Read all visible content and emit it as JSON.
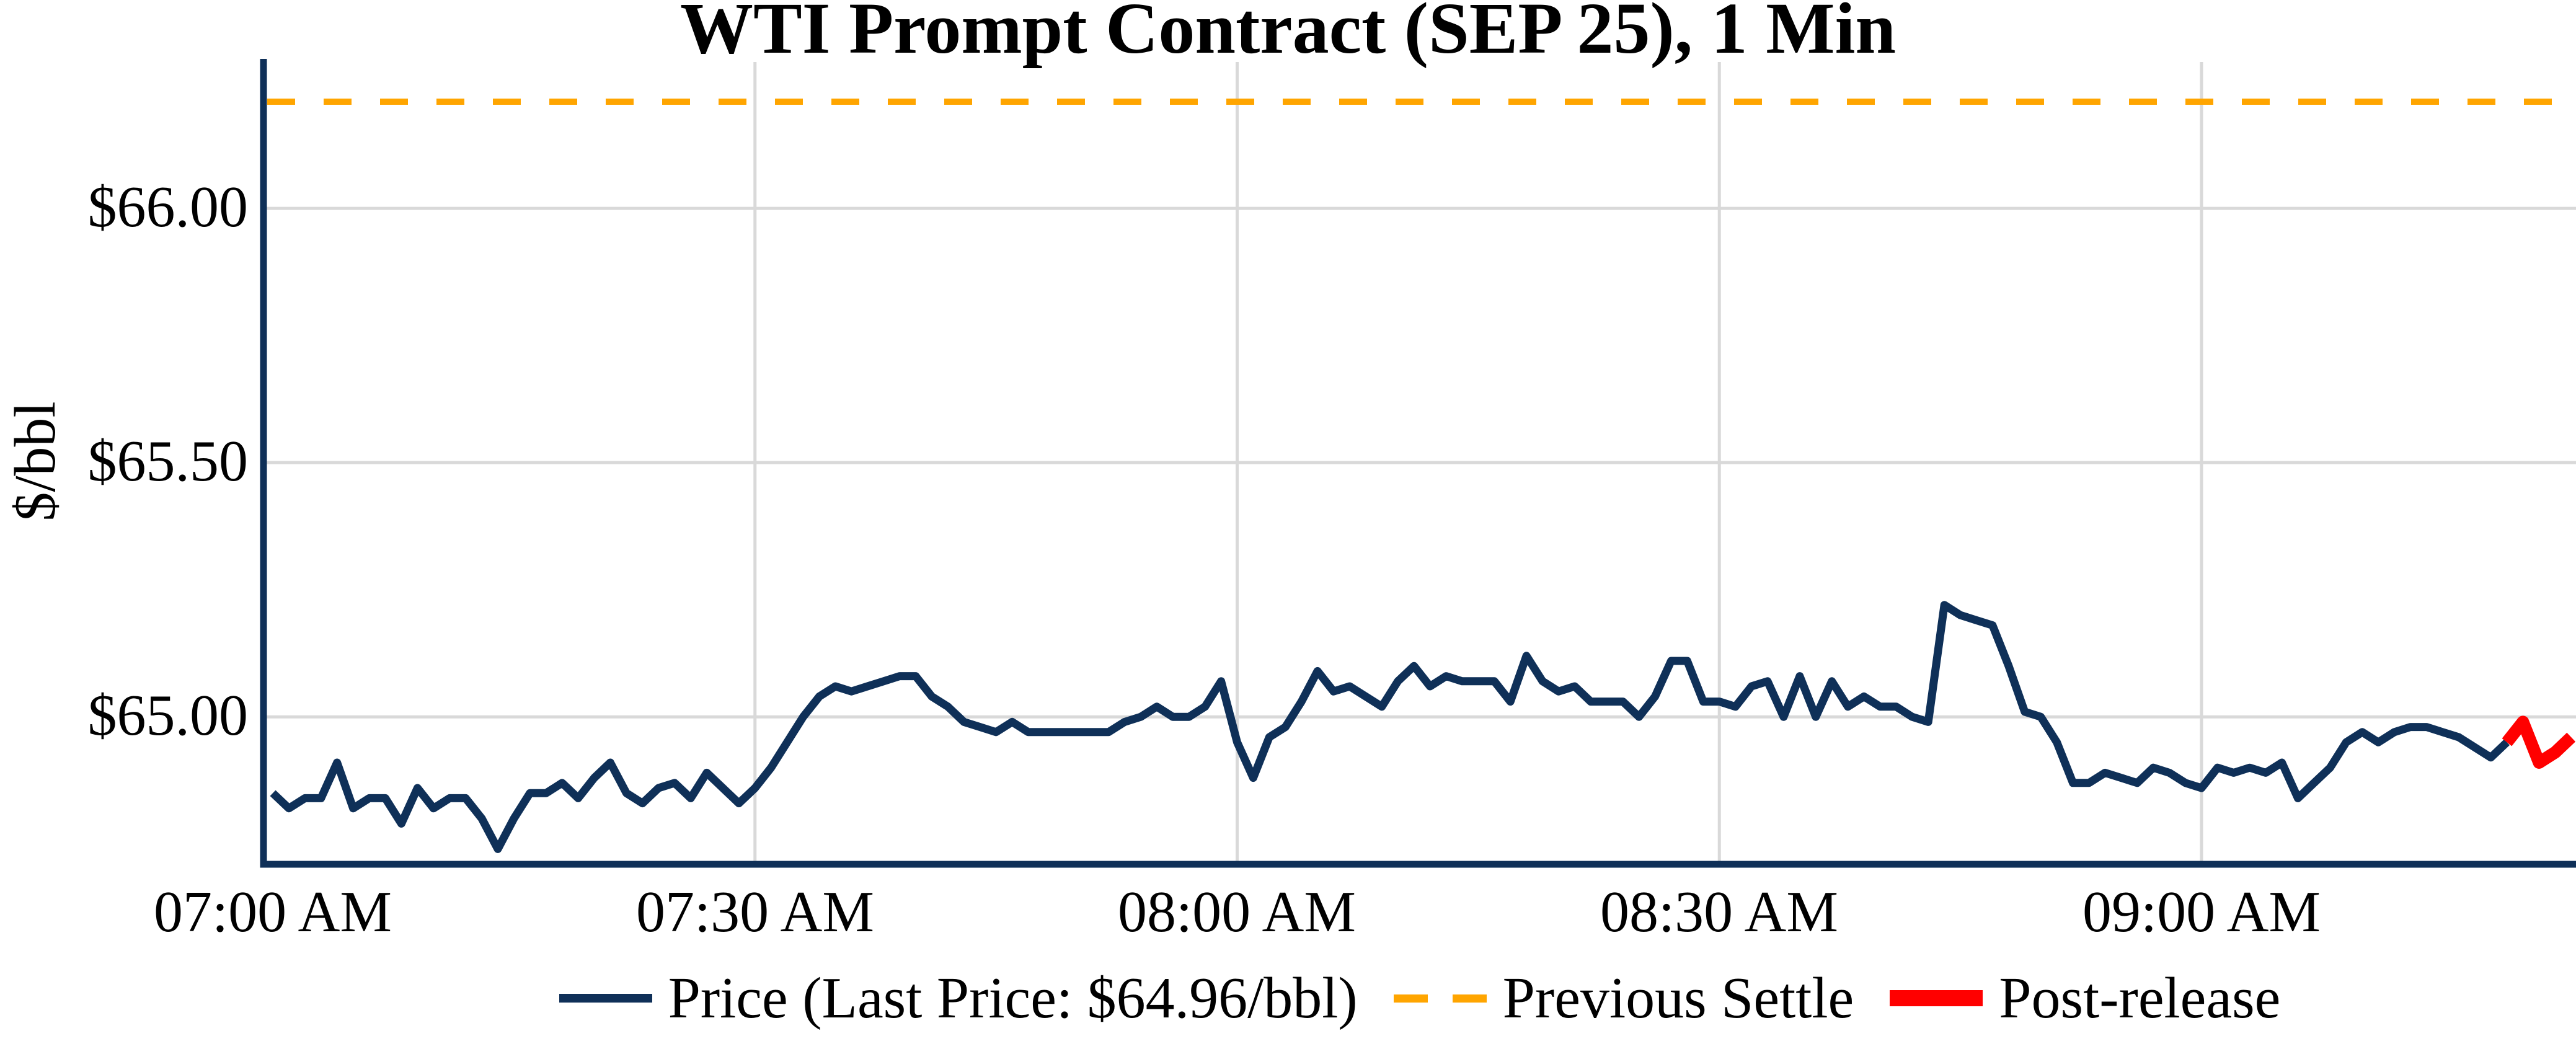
{
  "chart_data": {
    "type": "line",
    "title": "WTI Prompt Contract (SEP 25), 1 Min",
    "ylabel": "$/bbl",
    "last_price_label": "$64.96/bbl",
    "grid": true,
    "colors": {
      "price": "#0f3058",
      "previous_settle": "#ffa500",
      "post_release": "#ff0000",
      "gridline": "#d9d9d9"
    },
    "x_axis": {
      "ticks": [
        {
          "label": "07:00 AM",
          "time": "07:00"
        },
        {
          "label": "07:30 AM",
          "time": "07:30"
        },
        {
          "label": "08:00 AM",
          "time": "08:00"
        },
        {
          "label": "08:30 AM",
          "time": "08:30"
        },
        {
          "label": "09:00 AM",
          "time": "09:00"
        }
      ],
      "xlim_minutes": [
        -0.58,
        143.3
      ]
    },
    "y_axis": {
      "ticks": [
        {
          "label": "$66.00",
          "value": 66.0
        },
        {
          "label": "$65.50",
          "value": 65.5
        },
        {
          "label": "$65.00",
          "value": 65.0
        }
      ],
      "ylim": [
        64.71,
        66.288
      ]
    },
    "previous_settle": {
      "name": "Previous Settle",
      "value": 66.21
    },
    "series": [
      {
        "name": "Price",
        "style": "solid",
        "color": "#0f3058",
        "points": [
          [
            "07:00",
            64.85
          ],
          [
            "07:01",
            64.82
          ],
          [
            "07:02",
            64.84
          ],
          [
            "07:03",
            64.84
          ],
          [
            "07:04",
            64.91
          ],
          [
            "07:05",
            64.82
          ],
          [
            "07:06",
            64.84
          ],
          [
            "07:07",
            64.84
          ],
          [
            "07:08",
            64.79
          ],
          [
            "07:09",
            64.86
          ],
          [
            "07:10",
            64.82
          ],
          [
            "07:11",
            64.84
          ],
          [
            "07:12",
            64.84
          ],
          [
            "07:13",
            64.8
          ],
          [
            "07:14",
            64.74
          ],
          [
            "07:15",
            64.8
          ],
          [
            "07:16",
            64.85
          ],
          [
            "07:17",
            64.85
          ],
          [
            "07:18",
            64.87
          ],
          [
            "07:19",
            64.84
          ],
          [
            "07:20",
            64.88
          ],
          [
            "07:21",
            64.91
          ],
          [
            "07:22",
            64.85
          ],
          [
            "07:23",
            64.83
          ],
          [
            "07:24",
            64.86
          ],
          [
            "07:25",
            64.87
          ],
          [
            "07:26",
            64.84
          ],
          [
            "07:27",
            64.89
          ],
          [
            "07:28",
            64.86
          ],
          [
            "07:29",
            64.83
          ],
          [
            "07:30",
            64.86
          ],
          [
            "07:31",
            64.9
          ],
          [
            "07:32",
            64.95
          ],
          [
            "07:33",
            65.0
          ],
          [
            "07:34",
            65.04
          ],
          [
            "07:35",
            65.06
          ],
          [
            "07:36",
            65.05
          ],
          [
            "07:37",
            65.06
          ],
          [
            "07:38",
            65.07
          ],
          [
            "07:39",
            65.08
          ],
          [
            "07:40",
            65.08
          ],
          [
            "07:41",
            65.04
          ],
          [
            "07:42",
            65.02
          ],
          [
            "07:43",
            64.99
          ],
          [
            "07:44",
            64.98
          ],
          [
            "07:45",
            64.97
          ],
          [
            "07:46",
            64.99
          ],
          [
            "07:47",
            64.97
          ],
          [
            "07:48",
            64.97
          ],
          [
            "07:49",
            64.97
          ],
          [
            "07:50",
            64.97
          ],
          [
            "07:51",
            64.97
          ],
          [
            "07:52",
            64.97
          ],
          [
            "07:53",
            64.99
          ],
          [
            "07:54",
            65.0
          ],
          [
            "07:55",
            65.02
          ],
          [
            "07:56",
            65.0
          ],
          [
            "07:57",
            65.0
          ],
          [
            "07:58",
            65.02
          ],
          [
            "07:59",
            65.07
          ],
          [
            "08:00",
            64.95
          ],
          [
            "08:01",
            64.88
          ],
          [
            "08:02",
            64.96
          ],
          [
            "08:03",
            64.98
          ],
          [
            "08:04",
            65.03
          ],
          [
            "08:05",
            65.09
          ],
          [
            "08:06",
            65.05
          ],
          [
            "08:07",
            65.06
          ],
          [
            "08:08",
            65.04
          ],
          [
            "08:09",
            65.02
          ],
          [
            "08:10",
            65.07
          ],
          [
            "08:11",
            65.1
          ],
          [
            "08:12",
            65.06
          ],
          [
            "08:13",
            65.08
          ],
          [
            "08:14",
            65.07
          ],
          [
            "08:15",
            65.07
          ],
          [
            "08:16",
            65.07
          ],
          [
            "08:17",
            65.03
          ],
          [
            "08:18",
            65.12
          ],
          [
            "08:19",
            65.07
          ],
          [
            "08:20",
            65.05
          ],
          [
            "08:21",
            65.06
          ],
          [
            "08:22",
            65.03
          ],
          [
            "08:23",
            65.03
          ],
          [
            "08:24",
            65.03
          ],
          [
            "08:25",
            65.0
          ],
          [
            "08:26",
            65.04
          ],
          [
            "08:27",
            65.11
          ],
          [
            "08:28",
            65.11
          ],
          [
            "08:29",
            65.03
          ],
          [
            "08:30",
            65.03
          ],
          [
            "08:31",
            65.02
          ],
          [
            "08:32",
            65.06
          ],
          [
            "08:33",
            65.07
          ],
          [
            "08:34",
            65.0
          ],
          [
            "08:35",
            65.08
          ],
          [
            "08:36",
            65.0
          ],
          [
            "08:37",
            65.07
          ],
          [
            "08:38",
            65.02
          ],
          [
            "08:39",
            65.04
          ],
          [
            "08:40",
            65.02
          ],
          [
            "08:41",
            65.02
          ],
          [
            "08:42",
            65.0
          ],
          [
            "08:43",
            64.99
          ],
          [
            "08:44",
            65.22
          ],
          [
            "08:45",
            65.2
          ],
          [
            "08:46",
            65.19
          ],
          [
            "08:47",
            65.18
          ],
          [
            "08:48",
            65.1
          ],
          [
            "08:49",
            65.01
          ],
          [
            "08:50",
            65.0
          ],
          [
            "08:51",
            64.95
          ],
          [
            "08:52",
            64.87
          ],
          [
            "08:53",
            64.87
          ],
          [
            "08:54",
            64.89
          ],
          [
            "08:55",
            64.88
          ],
          [
            "08:56",
            64.87
          ],
          [
            "08:57",
            64.9
          ],
          [
            "08:58",
            64.89
          ],
          [
            "08:59",
            64.87
          ],
          [
            "09:00",
            64.86
          ],
          [
            "09:01",
            64.9
          ],
          [
            "09:02",
            64.89
          ],
          [
            "09:03",
            64.9
          ],
          [
            "09:04",
            64.89
          ],
          [
            "09:05",
            64.91
          ],
          [
            "09:06",
            64.84
          ],
          [
            "09:07",
            64.87
          ],
          [
            "09:08",
            64.9
          ],
          [
            "09:09",
            64.95
          ],
          [
            "09:10",
            64.97
          ],
          [
            "09:11",
            64.95
          ],
          [
            "09:12",
            64.97
          ],
          [
            "09:13",
            64.98
          ],
          [
            "09:14",
            64.98
          ],
          [
            "09:15",
            64.97
          ],
          [
            "09:16",
            64.96
          ],
          [
            "09:17",
            64.94
          ],
          [
            "09:18",
            64.92
          ],
          [
            "09:19",
            64.95
          ]
        ]
      },
      {
        "name": "Post-release",
        "style": "solid",
        "color": "#ff0000",
        "points": [
          [
            "09:19",
            64.95
          ],
          [
            "09:20",
            64.99
          ],
          [
            "09:21",
            64.91
          ],
          [
            "09:22",
            64.93
          ],
          [
            "09:23",
            64.96
          ]
        ]
      }
    ],
    "legend": [
      {
        "label": "Price (Last Price: $64.96/bbl)",
        "swatch": "solid-line",
        "color": "#0f3058"
      },
      {
        "label": "Previous Settle",
        "swatch": "dashed-line",
        "color": "#ffa500"
      },
      {
        "label": "Post-release",
        "swatch": "thick-line",
        "color": "#ff0000"
      }
    ]
  }
}
